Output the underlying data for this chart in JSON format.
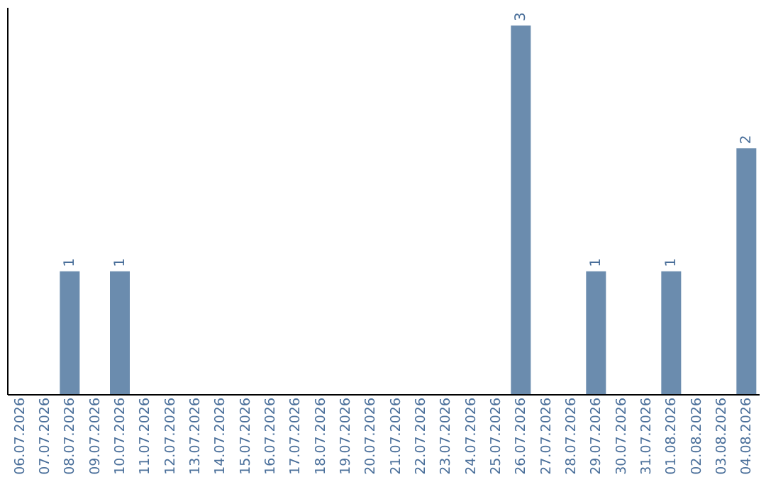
{
  "chart_data": {
    "type": "bar",
    "categories": [
      "06.07.2026",
      "07.07.2026",
      "08.07.2026",
      "09.07.2026",
      "10.07.2026",
      "11.07.2026",
      "12.07.2026",
      "13.07.2026",
      "14.07.2026",
      "15.07.2026",
      "16.07.2026",
      "17.07.2026",
      "18.07.2026",
      "19.07.2026",
      "20.07.2026",
      "21.07.2026",
      "22.07.2026",
      "23.07.2026",
      "24.07.2026",
      "25.07.2026",
      "26.07.2026",
      "27.07.2026",
      "28.07.2026",
      "29.07.2026",
      "30.07.2026",
      "31.07.2026",
      "01.08.2026",
      "02.08.2026",
      "03.08.2026",
      "04.08.2026"
    ],
    "values": [
      0,
      0,
      1,
      0,
      1,
      0,
      0,
      0,
      0,
      0,
      0,
      0,
      0,
      0,
      0,
      0,
      0,
      0,
      0,
      0,
      3,
      0,
      0,
      1,
      0,
      0,
      1,
      0,
      0,
      2
    ],
    "value_labels": [
      null,
      null,
      "1",
      null,
      "1",
      null,
      null,
      null,
      null,
      null,
      null,
      null,
      null,
      null,
      null,
      null,
      null,
      null,
      null,
      null,
      "3",
      null,
      null,
      "1",
      null,
      null,
      "1",
      null,
      null,
      "2"
    ],
    "color": "#6b8cae",
    "ylim": [
      0,
      3.15
    ],
    "grid": false,
    "tick_labels": "x"
  }
}
